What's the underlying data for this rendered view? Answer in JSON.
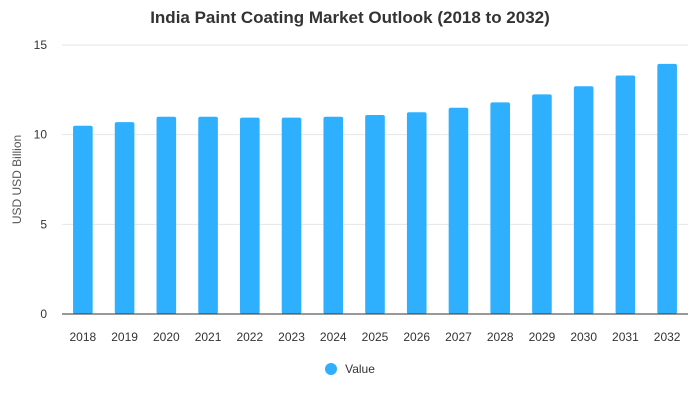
{
  "chart_data": {
    "type": "bar",
    "title": "India Paint Coating Market Outlook (2018 to 2032)",
    "xlabel": "",
    "ylabel": "USD USD Billion",
    "categories": [
      "2018",
      "2019",
      "2020",
      "2021",
      "2022",
      "2023",
      "2024",
      "2025",
      "2026",
      "2027",
      "2028",
      "2029",
      "2030",
      "2031",
      "2032"
    ],
    "series": [
      {
        "name": "Value",
        "values": [
          10.5,
          10.7,
          11.0,
          11.0,
          10.95,
          10.95,
          11.0,
          11.1,
          11.25,
          11.5,
          11.8,
          12.25,
          12.7,
          13.3,
          13.95
        ]
      }
    ],
    "ylim": [
      0,
      15
    ],
    "yticks": [
      0,
      5,
      10,
      15
    ],
    "grid": true,
    "legend_position": "bottom",
    "colors": {
      "bar": "#2eb0ff",
      "grid": "#e6e6e6",
      "axis": "#333333",
      "text": "#333333"
    }
  }
}
